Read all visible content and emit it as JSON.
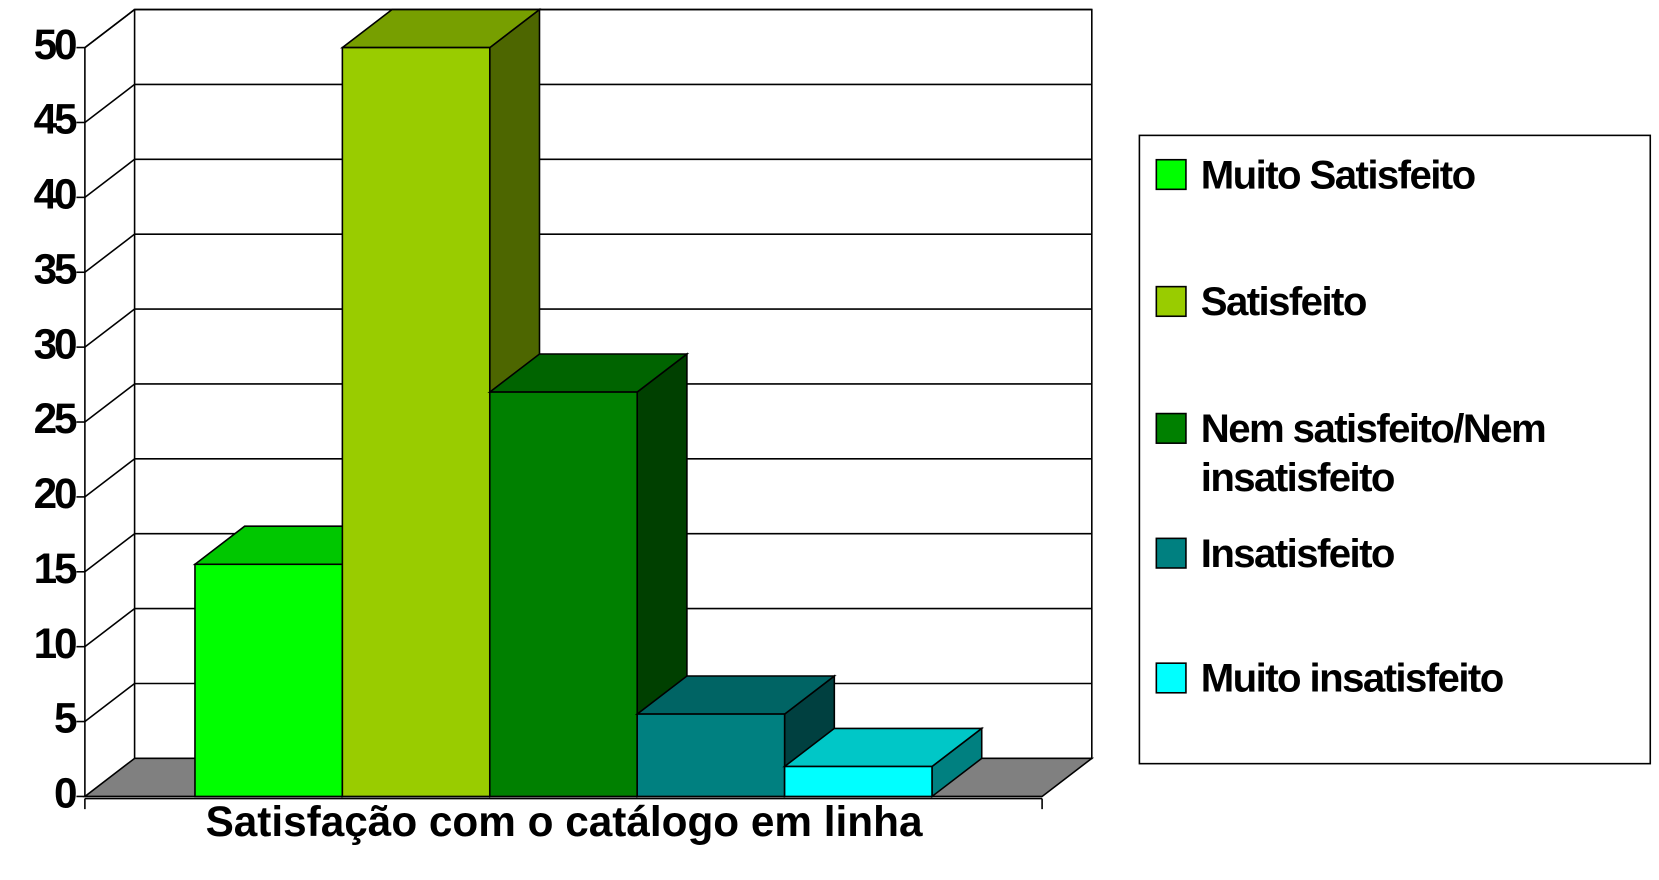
{
  "chart_data": {
    "type": "bar3d",
    "categories": [
      "Satisfação com o catálogo em linha"
    ],
    "series": [
      {
        "name": "Muito Satisfeito",
        "color": "#00ff00",
        "values": [
          15.5
        ]
      },
      {
        "name": "Satisfeito",
        "color": "#99cc00",
        "values": [
          50
        ]
      },
      {
        "name": "Nem satisfeito/Nem insatisfeito",
        "color": "#008000",
        "values": [
          27
        ]
      },
      {
        "name": "Insatisfeito",
        "color": "#008080",
        "values": [
          5.5
        ]
      },
      {
        "name": "Muito insatisfeito",
        "color": "#00ffff",
        "values": [
          2
        ]
      }
    ],
    "ylim": [
      0,
      50
    ],
    "yticks": [
      0,
      5,
      10,
      15,
      20,
      25,
      30,
      35,
      40,
      45,
      50
    ],
    "grid": true,
    "legend": "right"
  }
}
